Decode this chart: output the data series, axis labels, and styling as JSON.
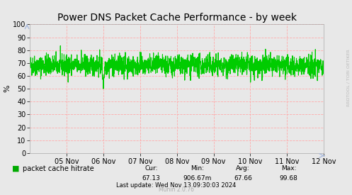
{
  "title": "Power DNS Packet Cache Performance - by week",
  "ylabel": "%",
  "yticks": [
    0,
    10,
    20,
    30,
    40,
    50,
    60,
    70,
    80,
    90,
    100
  ],
  "ylim": [
    0,
    100
  ],
  "xtick_labels": [
    "05 Nov",
    "06 Nov",
    "07 Nov",
    "08 Nov",
    "09 Nov",
    "10 Nov",
    "11 Nov",
    "12 Nov"
  ],
  "line_color": "#00cc00",
  "grid_color": "#ffaaaa",
  "bg_color": "#e8e8e8",
  "plot_bg_color": "#e8e8e8",
  "legend_label": "packet cache hitrate",
  "legend_color": "#00aa00",
  "cur_val": "67.13",
  "min_val": "906.67m",
  "avg_val": "67.66",
  "max_val": "99.68",
  "last_update": "Last update: Wed Nov 13 09:30:03 2024",
  "munin_text": "Munin 2.0.76",
  "rrdtool_text": "RRDTOOL / TOBI OETIKER",
  "seed": 42,
  "n_points": 2016,
  "base_value": 68.0,
  "noise_std": 4.0
}
